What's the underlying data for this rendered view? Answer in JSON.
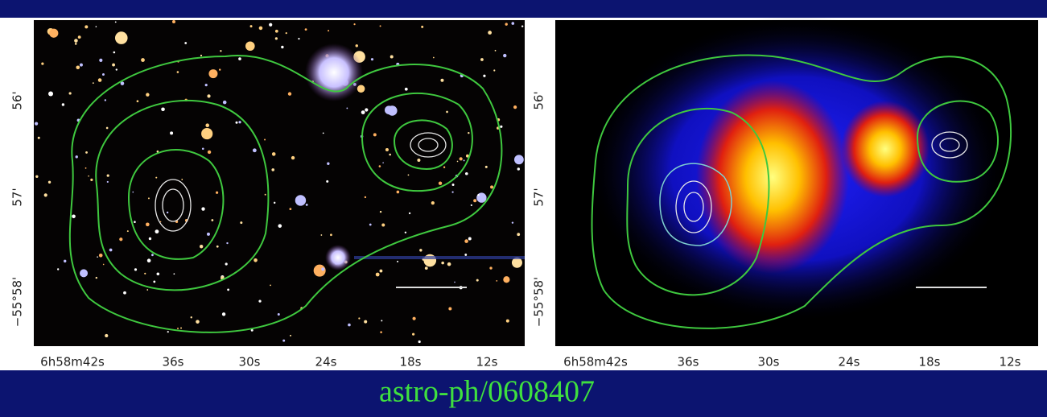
{
  "panels": [
    {
      "xticks": [
        "6h58m42s",
        "36s",
        "30s",
        "24s",
        "18s",
        "12s"
      ],
      "yticks": [
        "56'",
        "57'",
        "−55°58'"
      ]
    },
    {
      "xticks": [
        "6h58m42s",
        "36s",
        "30s",
        "24s",
        "18s",
        "12s"
      ],
      "yticks": [
        "56'",
        "57'",
        "−55°58'"
      ]
    }
  ],
  "caption": "astro-ph/0608407"
}
